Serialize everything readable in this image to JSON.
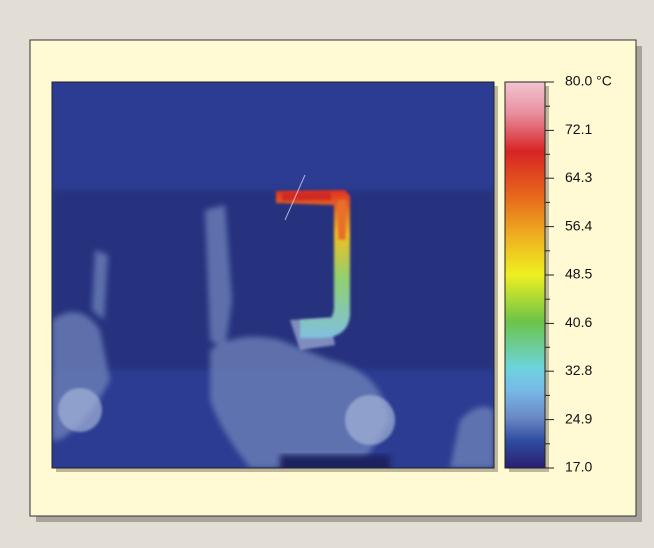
{
  "colorbar": {
    "lim": [
      17,
      80
    ],
    "ticks": [
      {
        "value": 80,
        "label": "80.0 °C"
      },
      72.1,
      64.3,
      56.4,
      48.5,
      40.6,
      32.8,
      24.9,
      {
        "value": 17,
        "label": "17.0"
      }
    ]
  }
}
